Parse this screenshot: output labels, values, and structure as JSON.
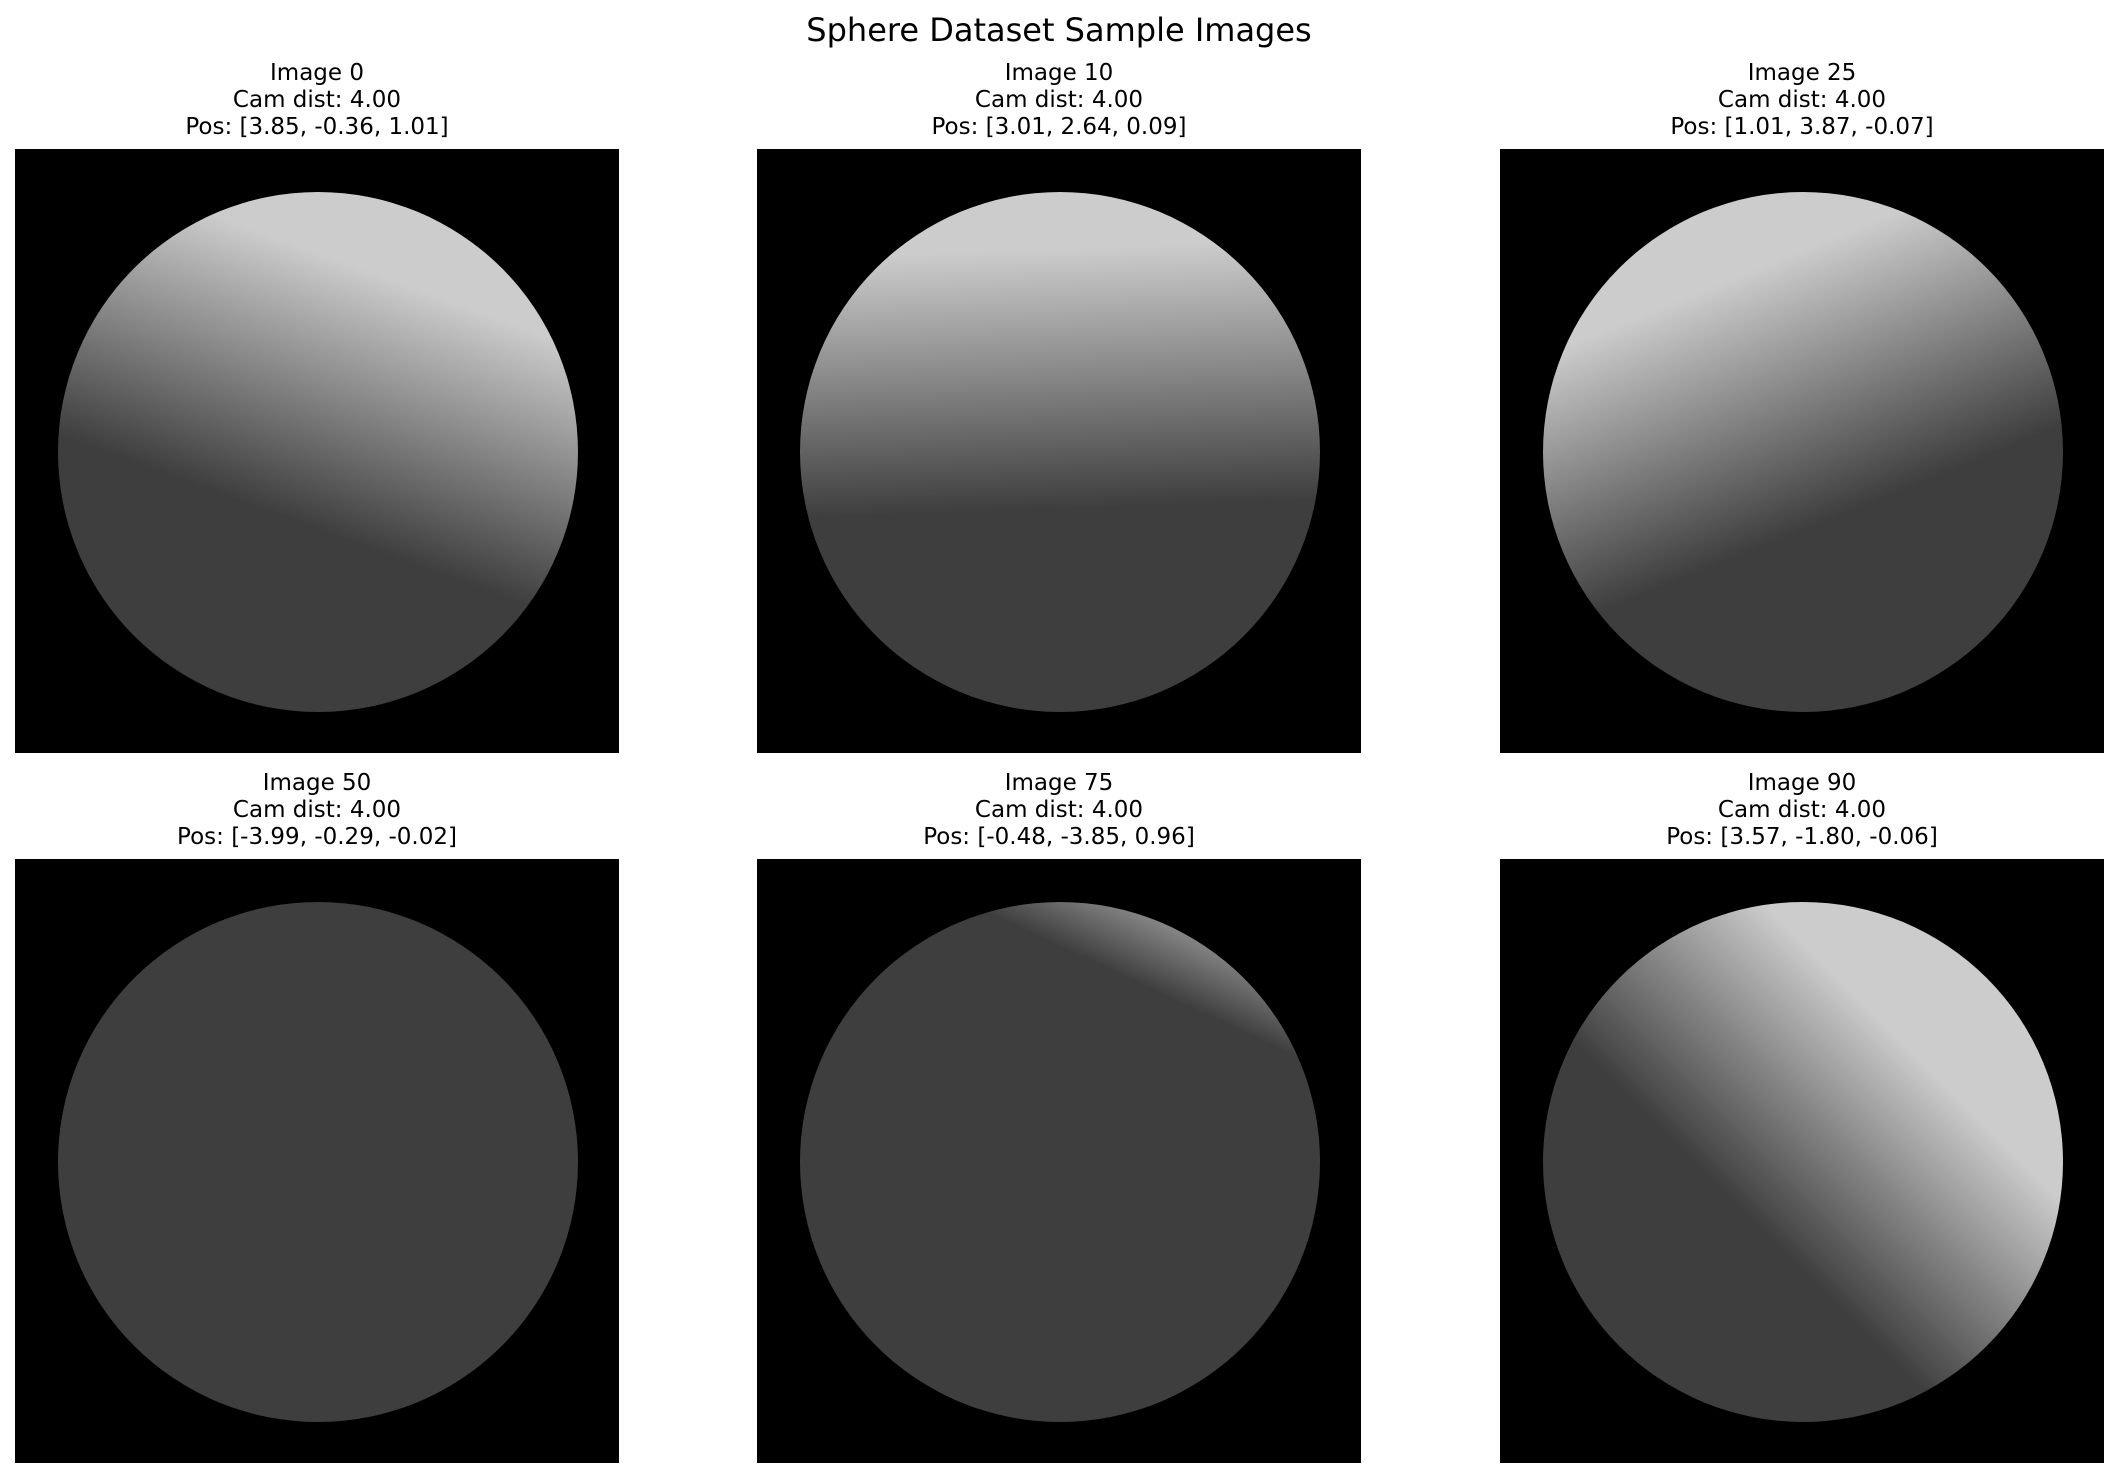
{
  "figure": {
    "title": "Sphere Dataset Sample Images",
    "colors": {
      "background": "#000000",
      "shadow": "#3e3e3e",
      "highlight": "#cccccc"
    }
  },
  "panels": [
    {
      "label": "Image 0",
      "cam_dist": "Cam dist: 4.00",
      "pos": "Pos: [3.85, -0.36, 1.01]",
      "light_angle_deg": 70,
      "light_center": 0.72,
      "light_width": 1.0
    },
    {
      "label": "Image 10",
      "cam_dist": "Cam dist: 4.00",
      "pos": "Pos: [3.01, 2.64, 0.09]",
      "light_angle_deg": 92,
      "light_center": 0.78,
      "light_width": 1.0
    },
    {
      "label": "Image 25",
      "cam_dist": "Cam dist: 4.00",
      "pos": "Pos: [1.01, 3.87, -0.07]",
      "light_angle_deg": 112,
      "light_center": 0.72,
      "light_width": 1.0
    },
    {
      "label": "Image 50",
      "cam_dist": "Cam dist: 4.00",
      "pos": "Pos: [-3.99, -0.29, -0.02]",
      "light_angle_deg": 128,
      "light_center": 1.45,
      "light_width": 0.45
    },
    {
      "label": "Image 75",
      "cam_dist": "Cam dist: 4.00",
      "pos": "Pos: [-0.48, -3.85, 0.96]",
      "light_angle_deg": 65,
      "light_center": 1.25,
      "light_width": 0.5
    },
    {
      "label": "Image 90",
      "cam_dist": "Cam dist: 4.00",
      "pos": "Pos: [3.57, -1.80, -0.06]",
      "light_angle_deg": 45,
      "light_center": 0.6,
      "light_width": 0.9
    }
  ]
}
